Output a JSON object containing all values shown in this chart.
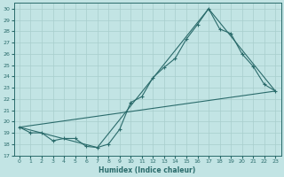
{
  "xlabel": "Humidex (Indice chaleur)",
  "ylabel": "",
  "bg_color": "#c2e4e4",
  "line_color": "#2a6b6b",
  "grid_color": "#a8cecc",
  "xlim": [
    -0.5,
    23.5
  ],
  "ylim": [
    17,
    30.5
  ],
  "yticks": [
    17,
    18,
    19,
    20,
    21,
    22,
    23,
    24,
    25,
    26,
    27,
    28,
    29,
    30
  ],
  "xticks": [
    0,
    1,
    2,
    3,
    4,
    5,
    6,
    7,
    8,
    9,
    10,
    11,
    12,
    13,
    14,
    15,
    16,
    17,
    18,
    19,
    20,
    21,
    22,
    23
  ],
  "line_main": {
    "x": [
      0,
      1,
      2,
      3,
      4,
      5,
      6,
      7,
      8,
      9,
      10,
      11,
      12,
      13,
      14,
      15,
      16,
      17,
      18,
      19,
      20,
      21,
      22,
      23
    ],
    "y": [
      19.5,
      19.0,
      19.0,
      18.3,
      18.5,
      18.5,
      17.8,
      17.7,
      18.0,
      19.3,
      21.7,
      22.2,
      23.9,
      24.8,
      25.6,
      27.3,
      28.6,
      30.0,
      28.2,
      27.8,
      26.0,
      24.9,
      23.3,
      22.7
    ]
  },
  "line_diag": {
    "x": [
      0,
      23
    ],
    "y": [
      19.5,
      22.7
    ]
  },
  "line_envelope": {
    "x": [
      0,
      7,
      17,
      23
    ],
    "y": [
      19.5,
      17.7,
      30.0,
      22.7
    ]
  }
}
